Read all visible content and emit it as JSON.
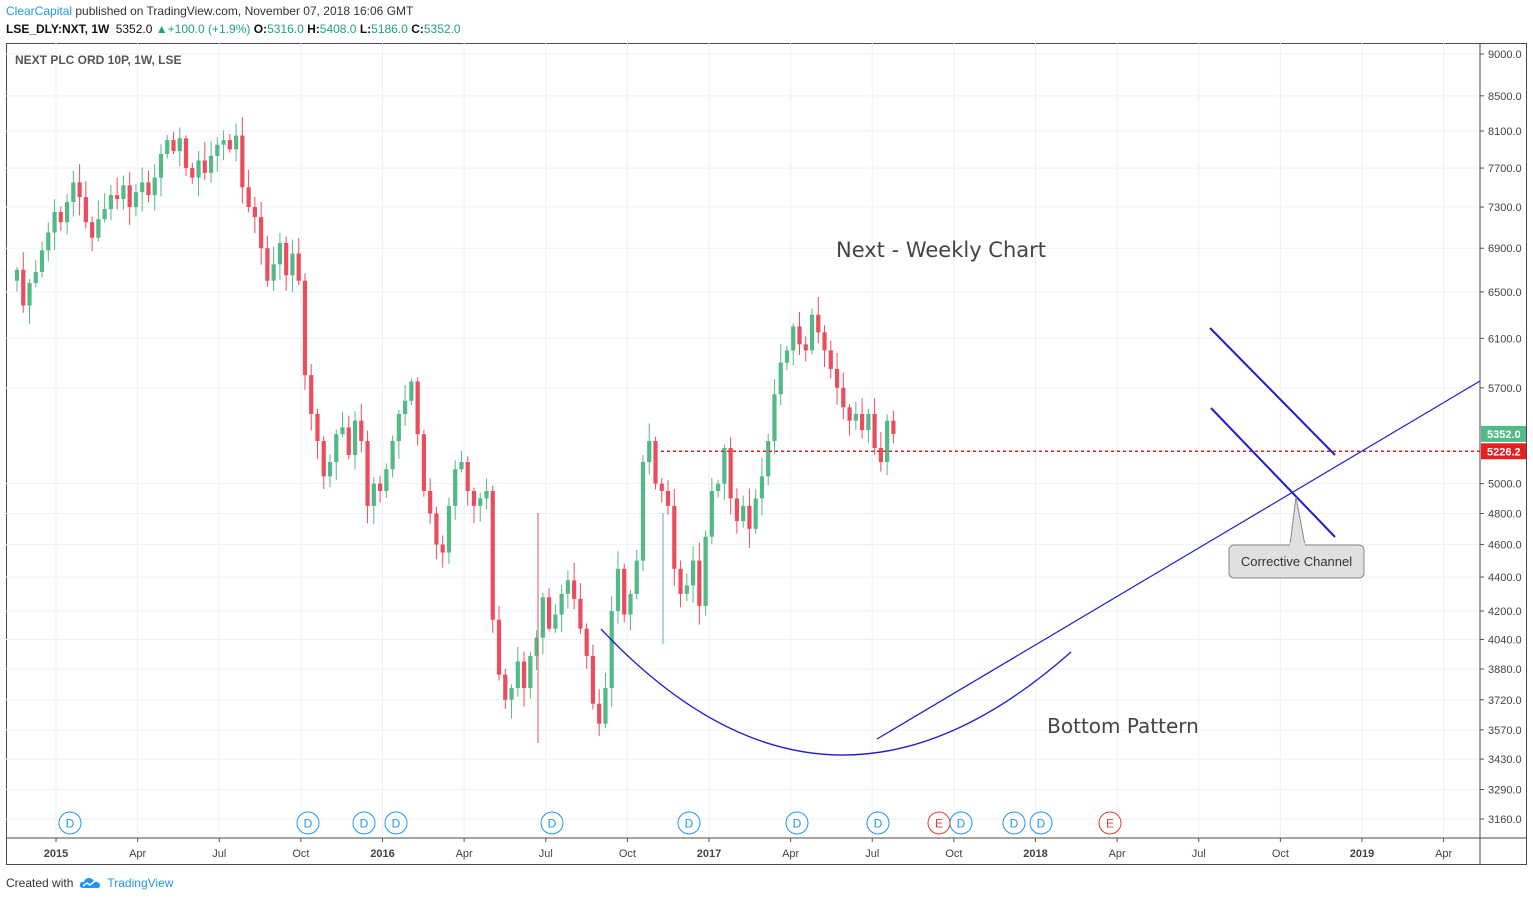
{
  "header": {
    "brand": "ClearCapital",
    "published": "published on TradingView.com, November 07, 2018 16:06 GMT"
  },
  "ohlc": {
    "symbol": "LSE_DLY:NXT, 1W",
    "last": "5352.0",
    "change": "+100.0 (+1.9%)",
    "o_label": "O:",
    "o": "5316.0",
    "h_label": "H:",
    "h": "5408.0",
    "l_label": "L:",
    "l": "5186.0",
    "c_label": "C:",
    "c": "5352.0"
  },
  "footer": {
    "created": "Created with",
    "brand": "TradingView",
    "logo_icon": "tradingview-cloud-icon"
  },
  "colors": {
    "up": "#53b987",
    "down": "#eb4d5c",
    "trend": "#1e1ecf",
    "resistance": "#e52222",
    "brand": "#2196f3",
    "grid": "#eef0f3"
  },
  "chart_data": {
    "type": "candlestick",
    "instrument_label": "NEXT PLC ORD 10P, 1W, LSE",
    "interval": "1W",
    "x_tick_labels": [
      "2015",
      "Apr",
      "Jul",
      "Oct",
      "2016",
      "Apr",
      "Jul",
      "Oct",
      "2017",
      "Apr",
      "Jul",
      "Oct",
      "2018",
      "Apr",
      "Jul",
      "Oct",
      "2019",
      "Apr"
    ],
    "x_range": [
      2014.96,
      2019.34
    ],
    "y_tick_labels": [
      "3160.0",
      "3290.0",
      "3430.0",
      "3570.0",
      "3720.0",
      "3880.0",
      "4040.0",
      "4200.0",
      "4400.0",
      "4600.0",
      "4800.0",
      "5000.0",
      "5700.0",
      "6100.0",
      "6500.0",
      "6900.0",
      "7300.0",
      "7700.0",
      "8100.0",
      "8500.0",
      "9000.0"
    ],
    "y_range": [
      3100,
      9050
    ],
    "y_scale": "log",
    "last_price_label": "5352.0",
    "resistance_label": "5226.2",
    "resistance_level": 5226.2,
    "annotations": {
      "title": "Next - Weekly Chart",
      "bottom_pattern": "Bottom Pattern",
      "corrective_channel": "Corrective Channel"
    },
    "dividend_markers": [
      "D",
      "D",
      "D",
      "D",
      "D",
      "D",
      "D",
      "D",
      "D",
      "D",
      "D"
    ],
    "earnings_markers": [
      "E",
      "E"
    ],
    "closes": [
      6700,
      6380,
      6580,
      6680,
      6880,
      7050,
      7250,
      7150,
      7350,
      7550,
      7400,
      7150,
      7000,
      7180,
      7280,
      7420,
      7380,
      7520,
      7300,
      7450,
      7550,
      7420,
      7600,
      7850,
      8000,
      7880,
      8020,
      7700,
      7600,
      7780,
      7650,
      7830,
      7950,
      8000,
      7900,
      8050,
      7500,
      7300,
      7200,
      6900,
      6600,
      6750,
      6950,
      6650,
      6850,
      6600,
      5800,
      5500,
      5300,
      5050,
      5150,
      5350,
      5400,
      5200,
      5450,
      5300,
      4850,
      5000,
      4950,
      5100,
      5300,
      5500,
      5600,
      5750,
      5350,
      4950,
      4800,
      4600,
      4550,
      4850,
      5100,
      5150,
      4950,
      4850,
      4900,
      4950,
      4150,
      3850,
      3720,
      3780,
      3920,
      3780,
      3950,
      4050,
      4280,
      4100,
      4180,
      4300,
      4380,
      4270,
      4100,
      3950,
      3700,
      3600,
      3780,
      4200,
      4450,
      4180,
      4300,
      4500,
      5150,
      5300,
      5000,
      4950,
      4850,
      4450,
      4300,
      4350,
      4500,
      4230,
      4650,
      4950,
      5000,
      5250,
      4900,
      4750,
      4850,
      4700,
      4900,
      5050,
      5300,
      5650,
      5900,
      6000,
      6200,
      6050,
      6000,
      6300,
      6150,
      6000,
      5850,
      5700,
      5550,
      5450,
      5500,
      5380,
      5500,
      5250,
      5150,
      5450,
      5352
    ]
  }
}
